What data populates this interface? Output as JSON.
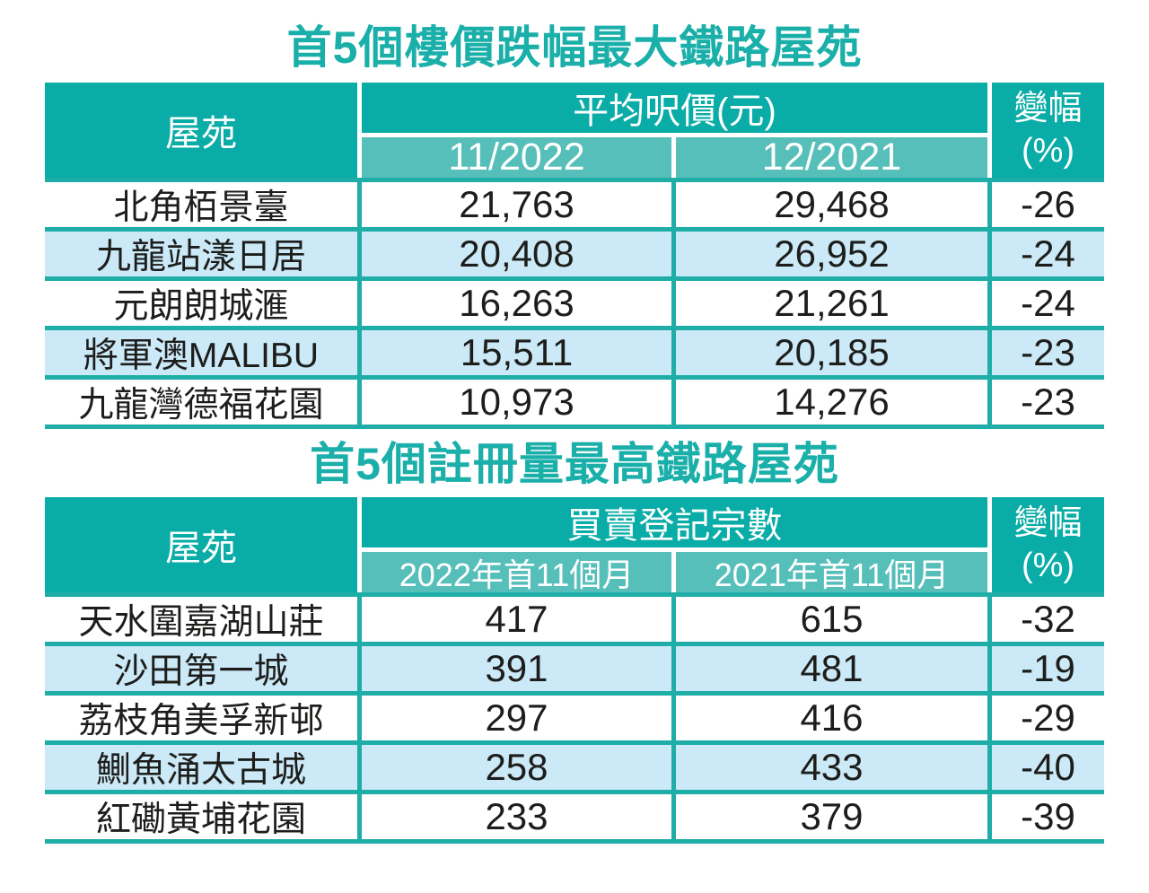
{
  "colors": {
    "header_teal": "#09ACA6",
    "subheader_teal": "#57BFBA",
    "border_teal": "#1FADA8",
    "alt_row_blue": "#CBE9F6",
    "title_teal": "#1BAFAA",
    "text_black": "#1D1D1B",
    "header_text_white": "#FFFFFF"
  },
  "chart_data": [
    {
      "type": "table",
      "title": "首5個樓價跌幅最大鐵路屋苑",
      "estate_header": "屋苑",
      "group_header": "平均呎價(元)",
      "sub_headers": [
        "11/2022",
        "12/2021"
      ],
      "change_header": [
        "變幅",
        "(%)"
      ],
      "rows": [
        {
          "estate": "北角栢景臺",
          "v1": "21,763",
          "v2": "29,468",
          "change": "-26"
        },
        {
          "estate": "九龍站漾日居",
          "v1": "20,408",
          "v2": "26,952",
          "change": "-24"
        },
        {
          "estate": "元朗朗城滙",
          "v1": "16,263",
          "v2": "21,261",
          "change": "-24"
        },
        {
          "estate": "將軍澳MALIBU",
          "v1": "15,511",
          "v2": "20,185",
          "change": "-23"
        },
        {
          "estate": "九龍灣德福花園",
          "v1": "10,973",
          "v2": "14,276",
          "change": "-23"
        }
      ]
    },
    {
      "type": "table",
      "title": "首5個註冊量最高鐵路屋苑",
      "estate_header": "屋苑",
      "group_header": "買賣登記宗數",
      "sub_headers": [
        "2022年首11個月",
        "2021年首11個月"
      ],
      "change_header": [
        "變幅",
        "(%)"
      ],
      "rows": [
        {
          "estate": "天水圍嘉湖山莊",
          "v1": "417",
          "v2": "615",
          "change": "-32"
        },
        {
          "estate": "沙田第一城",
          "v1": "391",
          "v2": "481",
          "change": "-19"
        },
        {
          "estate": "荔枝角美孚新邨",
          "v1": "297",
          "v2": "416",
          "change": "-29"
        },
        {
          "estate": "鰂魚涌太古城",
          "v1": "258",
          "v2": "433",
          "change": "-40"
        },
        {
          "estate": "紅磡黃埔花園",
          "v1": "233",
          "v2": "379",
          "change": "-39"
        }
      ]
    }
  ]
}
